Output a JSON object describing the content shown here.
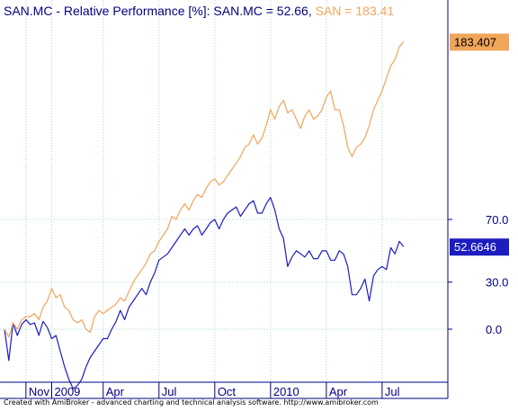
{
  "header": {
    "prefix": "SAN.MC - Relative Performance [%]: ",
    "series1_label": "SAN.MC = 52.66, ",
    "series2_label": "SAN = 183.41"
  },
  "footer": {
    "text": "Created with AmiBroker - advanced charting and technical analysis software. http://www.amibroker.com"
  },
  "colors": {
    "san_mc": "#1c1cbf",
    "san": "#f0a55a",
    "grid": "#a8d8d0",
    "axis": "#000080",
    "bg": "#ffffff"
  },
  "chart_data": {
    "type": "line",
    "title": "SAN.MC - Relative Performance [%]: SAN.MC = 52.66, SAN = 183.41",
    "xlabel": "",
    "ylabel": "",
    "ylim": [
      -28,
      205
    ],
    "y_ticks": [
      0.0,
      30.0,
      70.0
    ],
    "y_tick_labels": [
      "0.0",
      "30.0",
      "70.0"
    ],
    "x_tick_labels": [
      "Nov",
      "2009",
      "Apr",
      "Jul",
      "Oct",
      "2010",
      "Apr",
      "Jul"
    ],
    "x_tick_positions": [
      5,
      11,
      23,
      36,
      49,
      62,
      75,
      88
    ],
    "x_range": [
      0,
      92
    ],
    "grid": true,
    "last_value_labels": [
      "183.407",
      "52.6646"
    ],
    "series": [
      {
        "name": "SAN.MC",
        "values": [
          0,
          -20,
          4,
          -4,
          3,
          6,
          3,
          4,
          -4,
          5,
          1,
          -6,
          -4,
          -14,
          -24,
          -32,
          -38,
          -36,
          -32,
          -24,
          -18,
          -14,
          -10,
          -6,
          -6,
          0,
          5,
          12,
          6,
          14,
          18,
          22,
          26,
          22,
          30,
          36,
          44,
          46,
          48,
          52,
          56,
          60,
          64,
          60,
          64,
          66,
          60,
          64,
          68,
          70,
          64,
          70,
          74,
          76,
          78,
          72,
          76,
          80,
          82,
          74,
          74,
          80,
          84,
          76,
          64,
          58,
          40,
          46,
          50,
          48,
          46,
          50,
          45,
          45,
          50,
          50,
          44,
          44,
          50,
          48,
          40,
          22,
          22,
          26,
          32,
          18,
          34,
          38,
          40,
          38,
          52,
          48,
          56,
          52.66
        ]
      },
      {
        "name": "SAN",
        "values": [
          0,
          -5,
          4,
          0,
          6,
          8,
          8,
          10,
          6,
          14,
          18,
          26,
          20,
          22,
          14,
          12,
          6,
          4,
          6,
          0,
          -2,
          8,
          12,
          10,
          12,
          14,
          16,
          20,
          18,
          24,
          30,
          34,
          38,
          42,
          48,
          50,
          56,
          60,
          64,
          72,
          70,
          76,
          80,
          76,
          82,
          86,
          84,
          90,
          94,
          96,
          92,
          94,
          98,
          102,
          106,
          110,
          116,
          118,
          124,
          118,
          122,
          130,
          140,
          134,
          142,
          146,
          138,
          140,
          134,
          128,
          136,
          140,
          134,
          136,
          140,
          148,
          152,
          140,
          140,
          130,
          116,
          110,
          116,
          118,
          122,
          130,
          140,
          146,
          152,
          160,
          168,
          172,
          180,
          183.41
        ]
      }
    ]
  }
}
